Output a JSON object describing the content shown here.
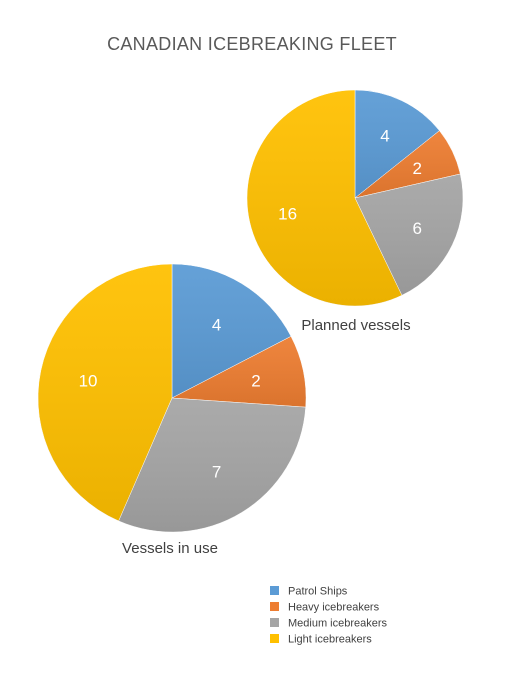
{
  "chart_data": {
    "type": "pie",
    "title": "CANADIAN ICEBREAKING FLEET",
    "legend_position": "bottom-right",
    "categories": [
      "Patrol Ships",
      "Heavy icebreakers",
      "Medium icebreakers",
      "Light icebreakers"
    ],
    "colors": [
      "#5B9BD5",
      "#ED7D31",
      "#A5A5A5",
      "#FFC000"
    ],
    "pies": [
      {
        "name": "Planned vessels",
        "values": [
          4,
          2,
          6,
          16
        ]
      },
      {
        "name": "Vessels in use",
        "values": [
          4,
          2,
          7,
          10
        ]
      }
    ]
  }
}
